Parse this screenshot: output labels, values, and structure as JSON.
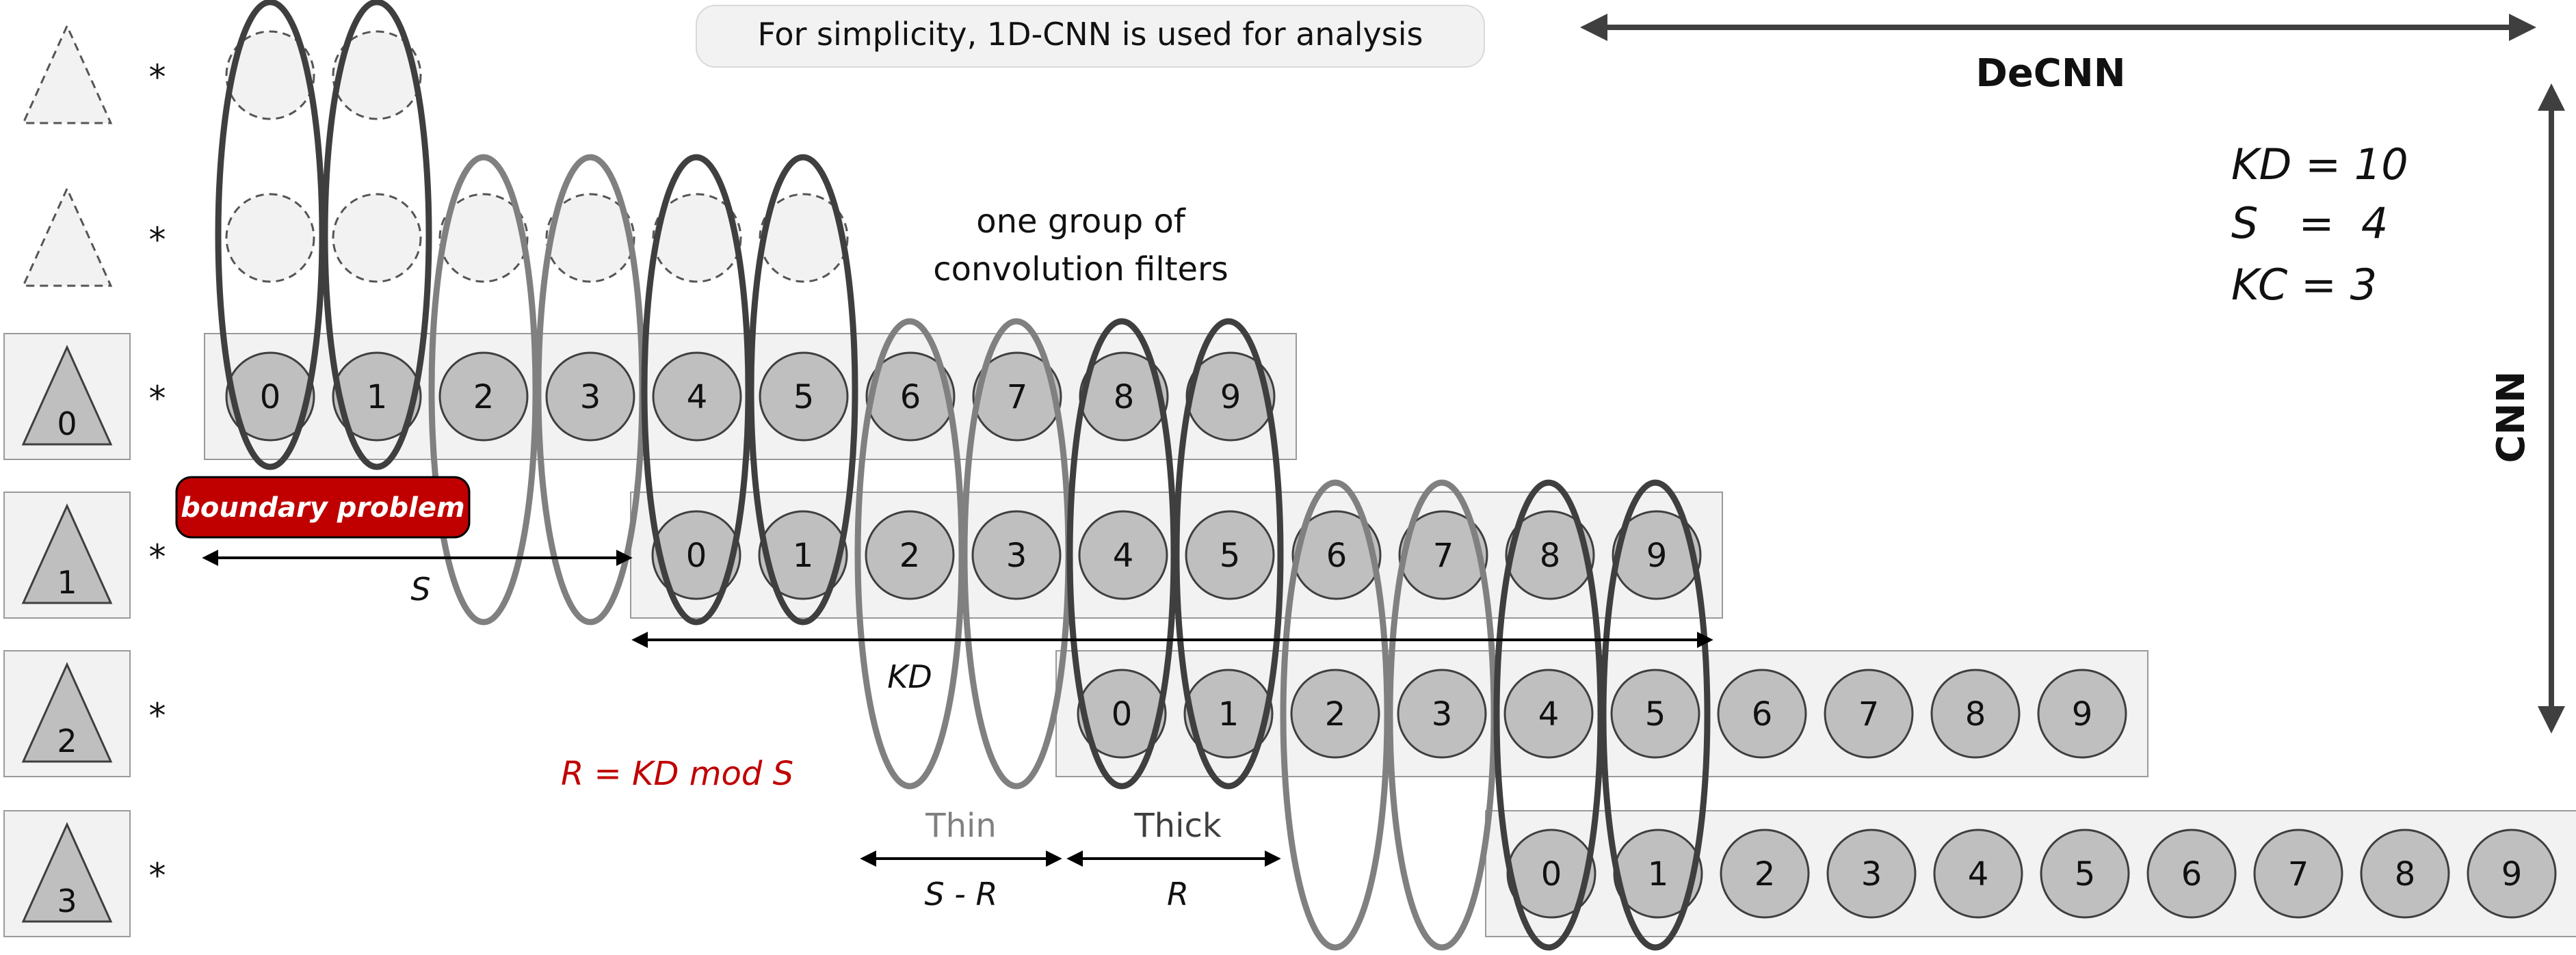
{
  "note": "For simplicity, 1D-CNN is used for analysis",
  "axes": {
    "horizontal": "DeCNN",
    "vertical": "CNN"
  },
  "params": {
    "kd": "KD = 10",
    "s": "S   =  4",
    "kc": "KC = 3"
  },
  "group_label": {
    "line1": "one group of",
    "line2": "convolution filters"
  },
  "boundary_label": "boundary problem",
  "formula": "R = KD mod S",
  "dimension_labels": {
    "s": "S",
    "kd": "KD",
    "thin": "Thin",
    "thick": "Thick",
    "s_minus_r": "S - R",
    "r": "R"
  },
  "operator": "*",
  "rows": [
    {
      "id": "ghost-1",
      "ghost": true,
      "label": "",
      "cells": [
        "",
        ""
      ]
    },
    {
      "id": "ghost-2",
      "ghost": true,
      "label": "",
      "cells": [
        "",
        "",
        "",
        "",
        "",
        ""
      ]
    },
    {
      "id": "row-0",
      "ghost": false,
      "label": "0",
      "cells": [
        "0",
        "1",
        "2",
        "3",
        "4",
        "5",
        "6",
        "7",
        "8",
        "9"
      ]
    },
    {
      "id": "row-1",
      "ghost": false,
      "label": "1",
      "cells": [
        "0",
        "1",
        "2",
        "3",
        "4",
        "5",
        "6",
        "7",
        "8",
        "9"
      ]
    },
    {
      "id": "row-2",
      "ghost": false,
      "label": "2",
      "cells": [
        "0",
        "1",
        "2",
        "3",
        "4",
        "5",
        "6",
        "7",
        "8",
        "9"
      ]
    },
    {
      "id": "row-3",
      "ghost": false,
      "label": "3",
      "cells": [
        "0",
        "1",
        "2",
        "3",
        "4",
        "5",
        "6",
        "7",
        "8",
        "9"
      ]
    }
  ],
  "colors": {
    "circle_fill": "#bfbfbf",
    "row_box_fill": "#f2f2f2",
    "thick_ring": "#3f3f3f",
    "thin_ring": "#808080",
    "boundary_fill": "#c00000",
    "formula_text": "#c00000",
    "dashed_stroke": "#555555"
  }
}
